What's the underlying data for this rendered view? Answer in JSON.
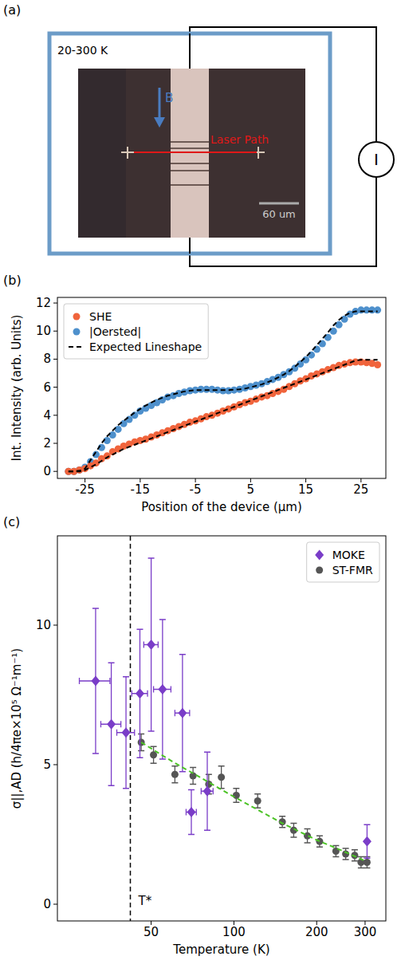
{
  "figure": {
    "panel_labels": [
      "(a)",
      "(b)",
      "(c)"
    ]
  },
  "diagram": {
    "temperature_label": "20-300 K",
    "field_label": "B",
    "laser_label": "Laser Path",
    "scale_bar_label": "60 um",
    "current_label": "I"
  },
  "chart_data": [
    {
      "type": "line",
      "x_label": "Position of the device (μm)",
      "y_label": "Int. Intensity (arb. Units)",
      "xlim": [
        -30,
        29.5
      ],
      "xticks": [
        -25,
        -15,
        -5,
        5,
        15,
        25
      ],
      "ylim": [
        -0.5,
        12.4
      ],
      "yticks": [
        0,
        2,
        4,
        6,
        8,
        10,
        12
      ],
      "grid": false,
      "legend": "upper left",
      "x": [
        -28,
        -27,
        -26,
        -25,
        -24,
        -23,
        -22,
        -21,
        -20,
        -19,
        -18,
        -17,
        -16,
        -15,
        -14,
        -13,
        -12,
        -11,
        -10,
        -9,
        -8,
        -7,
        -6,
        -5,
        -4,
        -3,
        -2,
        -1,
        0,
        1,
        2,
        3,
        4,
        5,
        6,
        7,
        8,
        9,
        10,
        11,
        12,
        13,
        14,
        15,
        16,
        17,
        18,
        19,
        20,
        21,
        22,
        23,
        24,
        25,
        26,
        27,
        28
      ],
      "series": [
        {
          "name": "SHE",
          "color": "#f0643c",
          "type": "scatter",
          "marker": "circle",
          "values": [
            0.0,
            0.0,
            0.1,
            0.2,
            0.4,
            0.6,
            0.9,
            1.1,
            1.4,
            1.6,
            1.8,
            1.95,
            2.1,
            2.2,
            2.3,
            2.45,
            2.6,
            2.75,
            2.9,
            3.05,
            3.2,
            3.35,
            3.5,
            3.6,
            3.75,
            3.9,
            4.0,
            4.15,
            4.3,
            4.45,
            4.6,
            4.75,
            4.9,
            5.0,
            5.15,
            5.3,
            5.4,
            5.55,
            5.7,
            5.85,
            6.05,
            6.25,
            6.45,
            6.6,
            6.8,
            6.95,
            7.1,
            7.25,
            7.4,
            7.55,
            7.65,
            7.75,
            7.8,
            7.8,
            7.75,
            7.7,
            7.6
          ]
        },
        {
          "name": "|Oersted|",
          "color": "#4e90cc",
          "type": "scatter",
          "marker": "circle",
          "values": [
            0.0,
            0.0,
            0.1,
            0.3,
            0.7,
            1.2,
            1.7,
            2.2,
            2.6,
            3.0,
            3.4,
            3.7,
            4.0,
            4.3,
            4.5,
            4.7,
            4.9,
            5.1,
            5.3,
            5.4,
            5.55,
            5.65,
            5.75,
            5.8,
            5.85,
            5.85,
            5.85,
            5.8,
            5.75,
            5.75,
            5.8,
            5.85,
            5.95,
            6.05,
            6.15,
            6.25,
            6.4,
            6.55,
            6.7,
            6.9,
            7.1,
            7.35,
            7.65,
            7.95,
            8.3,
            8.7,
            9.1,
            9.55,
            10.0,
            10.45,
            10.85,
            11.2,
            11.4,
            11.5,
            11.5,
            11.5,
            11.5
          ]
        },
        {
          "name": "Expected Lineshape",
          "color": "#000000",
          "type": "line",
          "line_style": "dashed",
          "values": [
            0.0,
            0.0,
            0.0,
            0.1,
            0.3,
            0.5,
            0.75,
            1.0,
            1.2,
            1.4,
            1.6,
            1.75,
            1.9,
            2.05,
            2.2,
            2.35,
            2.5,
            2.65,
            2.8,
            2.95,
            3.1,
            3.25,
            3.4,
            3.55,
            3.7,
            3.85,
            4.0,
            4.15,
            4.3,
            4.45,
            4.6,
            4.75,
            4.9,
            5.05,
            5.2,
            5.35,
            5.5,
            5.65,
            5.8,
            5.95,
            6.1,
            6.25,
            6.4,
            6.55,
            6.7,
            6.85,
            7.0,
            7.15,
            7.3,
            7.45,
            7.6,
            7.75,
            7.9,
            7.95,
            7.95,
            7.95,
            7.95
          ]
        },
        {
          "name": null,
          "color": "#000000",
          "type": "line",
          "line_style": "dashed",
          "values": [
            0.0,
            0.0,
            0.05,
            0.2,
            0.8,
            1.4,
            2.0,
            2.5,
            2.9,
            3.3,
            3.6,
            3.9,
            4.2,
            4.45,
            4.7,
            4.9,
            5.1,
            5.25,
            5.4,
            5.5,
            5.6,
            5.7,
            5.75,
            5.8,
            5.8,
            5.8,
            5.8,
            5.8,
            5.8,
            5.8,
            5.82,
            5.85,
            5.9,
            6.0,
            6.1,
            6.2,
            6.35,
            6.5,
            6.7,
            6.9,
            7.15,
            7.45,
            7.8,
            8.15,
            8.55,
            9.0,
            9.45,
            9.9,
            10.4,
            10.8,
            11.1,
            11.3,
            11.4,
            11.4,
            11.4,
            11.4,
            11.4
          ]
        }
      ]
    },
    {
      "type": "scatter",
      "x_label": "Temperature (K)",
      "y_label": "σ||,AD (h/4πe×10⁵ Ω⁻¹m⁻¹)",
      "log": "x",
      "xlim": [
        22.8,
        357
      ],
      "xticks": [
        50,
        100,
        200,
        300
      ],
      "ylim": [
        -0.6,
        13.2
      ],
      "yticks": [
        0,
        5,
        10
      ],
      "grid": false,
      "legend": "upper right",
      "annotations": [
        {
          "label": "T*",
          "x": 42
        }
      ],
      "series": [
        {
          "name": "MOKE",
          "color": "#7a3dc8",
          "type": "scatter",
          "marker": "diamond",
          "x": [
            31.4,
            35.8,
            40.5,
            45.5,
            50,
            55,
            65,
            70,
            80,
            305
          ],
          "values": [
            8.0,
            6.45,
            6.15,
            7.55,
            9.3,
            7.7,
            6.85,
            3.3,
            4.05,
            2.25
          ],
          "error": [
            2.6,
            2.2,
            2.0,
            2.3,
            3.1,
            2.5,
            2.1,
            0.8,
            1.4,
            0.6
          ],
          "x_error": [
            4,
            3,
            3,
            3,
            3,
            4,
            4,
            3,
            4,
            0
          ]
        },
        {
          "name": "ST-FMR",
          "color": "#555555",
          "type": "scatter",
          "marker": "circle",
          "x": [
            46,
            51,
            61,
            71,
            81,
            90,
            102,
            122,
            150,
            165,
            185,
            205,
            235,
            255,
            275,
            290,
            305
          ],
          "values": [
            5.8,
            5.35,
            4.65,
            4.6,
            4.3,
            4.55,
            3.9,
            3.7,
            2.95,
            2.65,
            2.45,
            2.25,
            1.9,
            1.8,
            1.75,
            1.5,
            1.5
          ],
          "error": [
            0.3,
            0.3,
            0.3,
            0.3,
            0.35,
            0.4,
            0.25,
            0.25,
            0.2,
            0.25,
            0.25,
            0.2,
            0.2,
            0.2,
            0.2,
            0.2,
            0.2
          ]
        },
        {
          "name": null,
          "color": "#4cc326",
          "type": "line",
          "line_style": "dashed",
          "x": [
            46,
            60,
            80,
            100,
            150,
            200,
            250,
            300
          ],
          "values": [
            5.8,
            5.1,
            4.4,
            3.85,
            2.9,
            2.3,
            1.9,
            1.55
          ]
        }
      ]
    }
  ]
}
